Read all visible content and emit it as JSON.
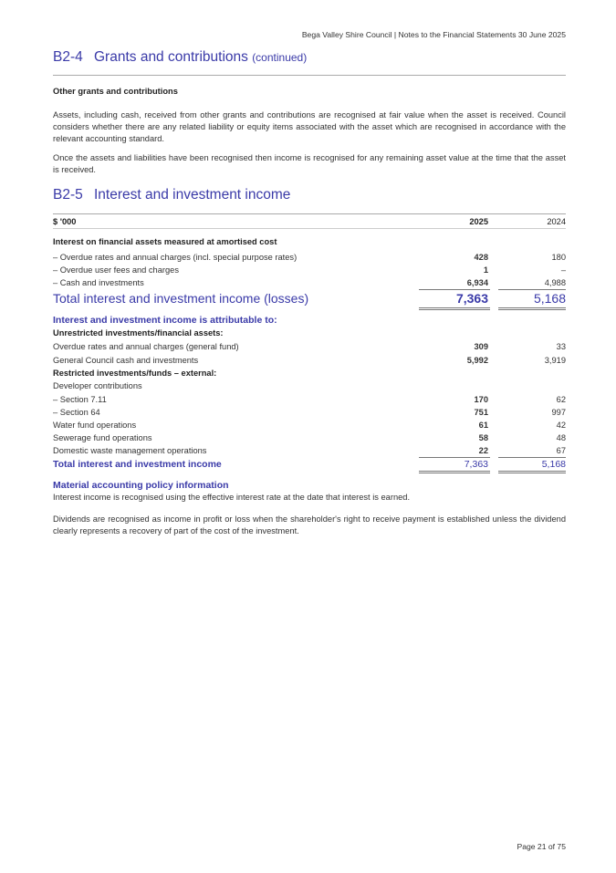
{
  "header": "Bega Valley Shire Council | Notes to the Financial Statements 30 June 2025",
  "section_b2_4": {
    "number": "B2-4",
    "title": "Grants and contributions",
    "suffix": "(continued)",
    "subheading": "Other grants and contributions",
    "paragraphs": [
      "Assets, including cash, received from other grants and contributions are recognised at fair value when the asset is received. Council considers whether there are any related liability or equity items associated with the asset which are recognised in accordance with the relevant accounting standard.",
      "Once the assets and liabilities have been recognised then income is recognised for any remaining asset value at the time that the asset is received."
    ]
  },
  "section_b2_5": {
    "number": "B2-5",
    "title": "Interest and investment income",
    "table": {
      "columns": [
        "$ '000",
        "2025",
        "2024"
      ],
      "group_heading": "Interest on financial assets measured at amortised cost",
      "rows": [
        {
          "label": "– Overdue rates and annual charges (incl. special purpose rates)",
          "y2025": "428",
          "y2024": "180"
        },
        {
          "label": "– Overdue user fees and charges",
          "y2025": "1",
          "y2024": "–"
        },
        {
          "label": "– Cash and investments",
          "y2025": "6,934",
          "y2024": "4,988"
        }
      ],
      "total": {
        "label": "Total interest and investment income (losses)",
        "y2025": "7,363",
        "y2024": "5,168"
      }
    },
    "attributable": {
      "heading": "Interest and investment income is attributable to:",
      "unrestricted_heading": "Unrestricted investments/financial assets:",
      "unrestricted_rows": [
        {
          "label": "Overdue rates and annual charges (general fund)",
          "y2025": "309",
          "y2024": "33"
        },
        {
          "label": "General Council cash and investments",
          "y2025": "5,992",
          "y2024": "3,919"
        }
      ],
      "restricted_heading": "Restricted investments/funds – external:",
      "developer_label": "Developer contributions",
      "restricted_rows": [
        {
          "label": "– Section 7.11",
          "y2025": "170",
          "y2024": "62"
        },
        {
          "label": "– Section 64",
          "y2025": "751",
          "y2024": "997"
        },
        {
          "label": "Water fund operations",
          "y2025": "61",
          "y2024": "42"
        },
        {
          "label": "Sewerage fund operations",
          "y2025": "58",
          "y2024": "48"
        },
        {
          "label": "Domestic waste management operations",
          "y2025": "22",
          "y2024": "67"
        }
      ],
      "total": {
        "label": "Total interest and investment income",
        "y2025": "7,363",
        "y2024": "5,168"
      }
    },
    "policy": {
      "heading": "Material accounting policy information",
      "paragraphs": [
        "Interest income is recognised using the effective interest rate at the date that interest is earned.",
        "Dividends are recognised as income in profit or loss when the shareholder's right to receive payment is established unless the dividend clearly represents a recovery of part of the cost of the investment."
      ]
    }
  },
  "footer": "Page 21 of 75",
  "colors": {
    "heading_blue": "#3a3aa8",
    "text": "#333333"
  }
}
